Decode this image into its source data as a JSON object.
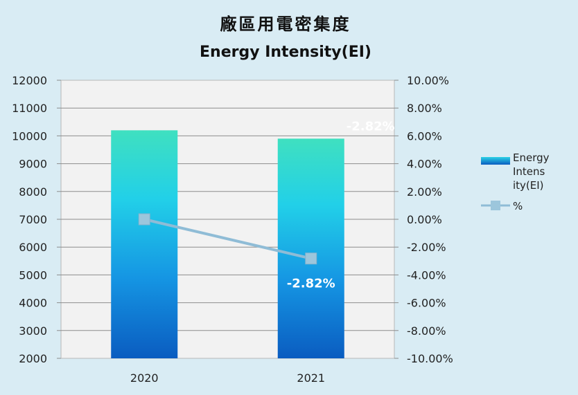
{
  "chart_data": {
    "type": "bar",
    "title": "廠區用電密集度",
    "subtitle": "Energy Intensity(EI)",
    "categories": [
      "2020",
      "2021"
    ],
    "series": [
      {
        "name": "Energy Intensity(EI)",
        "type": "bar",
        "axis": "left",
        "values": [
          10200,
          9900
        ],
        "color": "#1aa3e0"
      },
      {
        "name": "%",
        "type": "line",
        "axis": "right",
        "values": [
          0.0,
          -2.82
        ],
        "color": "#8fbcd6"
      }
    ],
    "y_left": {
      "min": 2000,
      "max": 12000,
      "step": 1000,
      "ticks": [
        "2000",
        "3000",
        "4000",
        "5000",
        "6000",
        "7000",
        "8000",
        "9000",
        "10000",
        "11000",
        "12000"
      ]
    },
    "y_right": {
      "min": -10,
      "max": 10,
      "step": 2,
      "ticks": [
        "-10.00%",
        "-8.00%",
        "-6.00%",
        "-4.00%",
        "-2.00%",
        "0.00%",
        "2.00%",
        "4.00%",
        "6.00%",
        "8.00%",
        "10.00%"
      ]
    },
    "data_labels": [
      {
        "text": "-2.82%",
        "anchor": "bar-top"
      },
      {
        "text": "-2.82%",
        "anchor": "line-point"
      }
    ],
    "legend": {
      "placement": "right",
      "items": [
        "Energy Intensity(EI)",
        "%"
      ]
    },
    "grid": true
  }
}
